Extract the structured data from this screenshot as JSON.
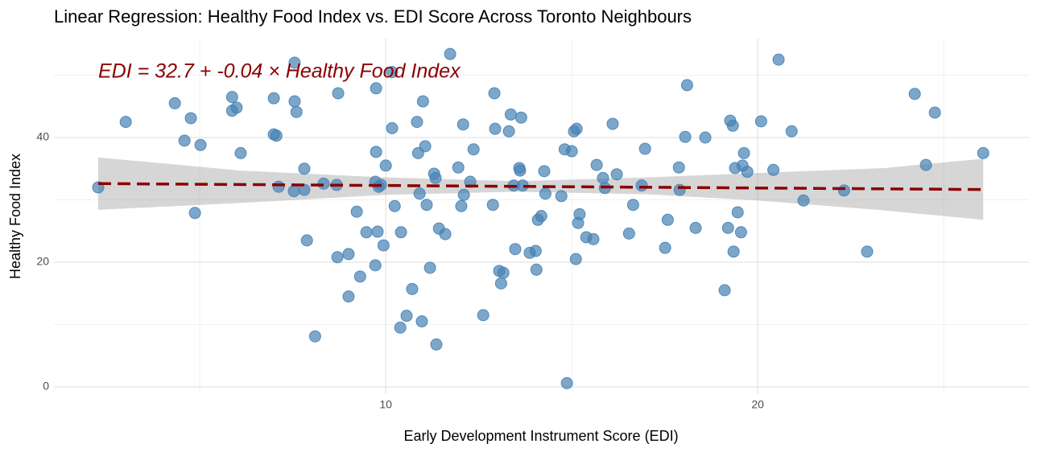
{
  "chart_data": {
    "type": "scatter",
    "title": "Linear Regression: Healthy Food Index vs. EDI Score Across Toronto Neighbours",
    "x_label": "Early Development Instrument Score (EDI)",
    "y_label": "Healthy Food Index",
    "annotation": "EDI = 32.7 + -0.04 × Healthy Food Index",
    "annotation_color": "#8b0000",
    "point_color": "#4682b4",
    "line_color": "#8b0000",
    "band_color": "#999999",
    "xlim": [
      1.08,
      27.29
    ],
    "ylim": [
      -1.16,
      55.87
    ],
    "xticks": [
      10,
      20
    ],
    "yticks": [
      0,
      20,
      40
    ],
    "x_minor_ticks": [
      5,
      15,
      25
    ],
    "y_minor_ticks": [
      10,
      30,
      50
    ],
    "grid": true,
    "x": [
      2.27,
      3.01,
      4.33,
      4.59,
      4.76,
      4.87,
      5.02,
      5.87,
      5.87,
      5.99,
      6.1,
      6.99,
      6.99,
      7.06,
      7.12,
      7.55,
      7.55,
      7.6,
      7.53,
      7.81,
      7.81,
      7.88,
      8.1,
      8.33,
      8.72,
      8.7,
      8.68,
      9.0,
      9.0,
      9.22,
      9.31,
      9.48,
      9.74,
      9.74,
      9.72,
      9.78,
      9.72,
      9.81,
      9.87,
      9.94,
      10.0,
      10.17,
      10.17,
      10.24,
      10.39,
      10.41,
      10.56,
      10.71,
      10.84,
      10.87,
      10.91,
      10.97,
      11.0,
      11.06,
      11.1,
      11.19,
      11.3,
      11.34,
      11.36,
      11.43,
      11.6,
      11.73,
      11.95,
      12.03,
      12.08,
      12.1,
      12.27,
      12.36,
      12.62,
      12.92,
      12.94,
      12.88,
      13.05,
      13.1,
      13.16,
      13.31,
      13.36,
      13.44,
      13.48,
      13.59,
      13.61,
      13.64,
      13.68,
      13.87,
      14.03,
      14.05,
      14.09,
      14.18,
      14.26,
      14.29,
      14.72,
      14.81,
      14.87,
      15.0,
      15.06,
      15.13,
      15.11,
      15.17,
      15.21,
      15.39,
      15.58,
      15.67,
      15.84,
      15.89,
      16.1,
      16.21,
      16.54,
      16.65,
      16.88,
      16.97,
      17.51,
      17.58,
      17.88,
      17.9,
      18.05,
      18.1,
      18.33,
      18.59,
      19.11,
      19.2,
      19.26,
      19.33,
      19.35,
      19.39,
      19.46,
      19.55,
      19.59,
      19.63,
      19.72,
      20.09,
      20.42,
      20.56,
      20.91,
      21.23,
      22.32,
      22.94,
      24.22,
      24.52,
      24.76,
      26.06
    ],
    "y": [
      32.0,
      42.5,
      45.5,
      39.5,
      43.1,
      27.9,
      38.8,
      46.5,
      44.3,
      44.8,
      37.5,
      46.3,
      40.5,
      40.3,
      32.1,
      52.0,
      45.8,
      44.1,
      31.4,
      35.0,
      31.6,
      23.5,
      8.1,
      32.6,
      47.1,
      20.8,
      32.4,
      21.3,
      14.5,
      28.1,
      17.7,
      24.8,
      47.9,
      37.7,
      32.9,
      24.9,
      19.5,
      32.1,
      32.4,
      22.7,
      35.5,
      50.5,
      41.5,
      29.0,
      9.5,
      24.8,
      11.4,
      15.7,
      42.5,
      37.5,
      31.0,
      10.5,
      45.8,
      38.6,
      29.2,
      19.1,
      34.2,
      33.5,
      6.8,
      25.4,
      24.5,
      53.4,
      35.2,
      29.0,
      42.1,
      30.8,
      32.9,
      38.1,
      11.5,
      47.1,
      41.4,
      29.2,
      18.6,
      16.6,
      18.3,
      41.0,
      43.7,
      32.3,
      22.1,
      35.1,
      34.7,
      43.2,
      32.3,
      21.5,
      21.8,
      18.8,
      26.8,
      27.4,
      34.6,
      31.0,
      30.6,
      38.1,
      0.6,
      37.8,
      41.0,
      41.4,
      20.5,
      26.3,
      27.7,
      24.0,
      23.7,
      35.6,
      33.5,
      31.9,
      42.2,
      34.1,
      24.6,
      29.2,
      32.3,
      38.2,
      22.3,
      26.8,
      35.2,
      31.6,
      40.1,
      48.4,
      25.5,
      40.0,
      15.5,
      25.5,
      42.7,
      41.9,
      21.7,
      35.1,
      28.0,
      24.8,
      35.5,
      37.5,
      34.5,
      42.6,
      34.8,
      52.5,
      41.0,
      29.9,
      31.5,
      21.7,
      47.0,
      35.6,
      44.0,
      37.5
    ],
    "fit": {
      "x": [
        2.27,
        26.06
      ],
      "y": [
        32.61,
        31.66
      ]
    },
    "band": {
      "x": [
        2.27,
        6.1,
        10,
        13.5,
        17,
        20,
        23.4,
        26.06
      ],
      "lower": [
        28.4,
        29.5,
        30.8,
        31.3,
        30.9,
        29.9,
        28.3,
        26.8
      ],
      "upper": [
        36.8,
        34.7,
        33.6,
        33.0,
        33.6,
        34.3,
        35.1,
        36.6
      ]
    }
  }
}
